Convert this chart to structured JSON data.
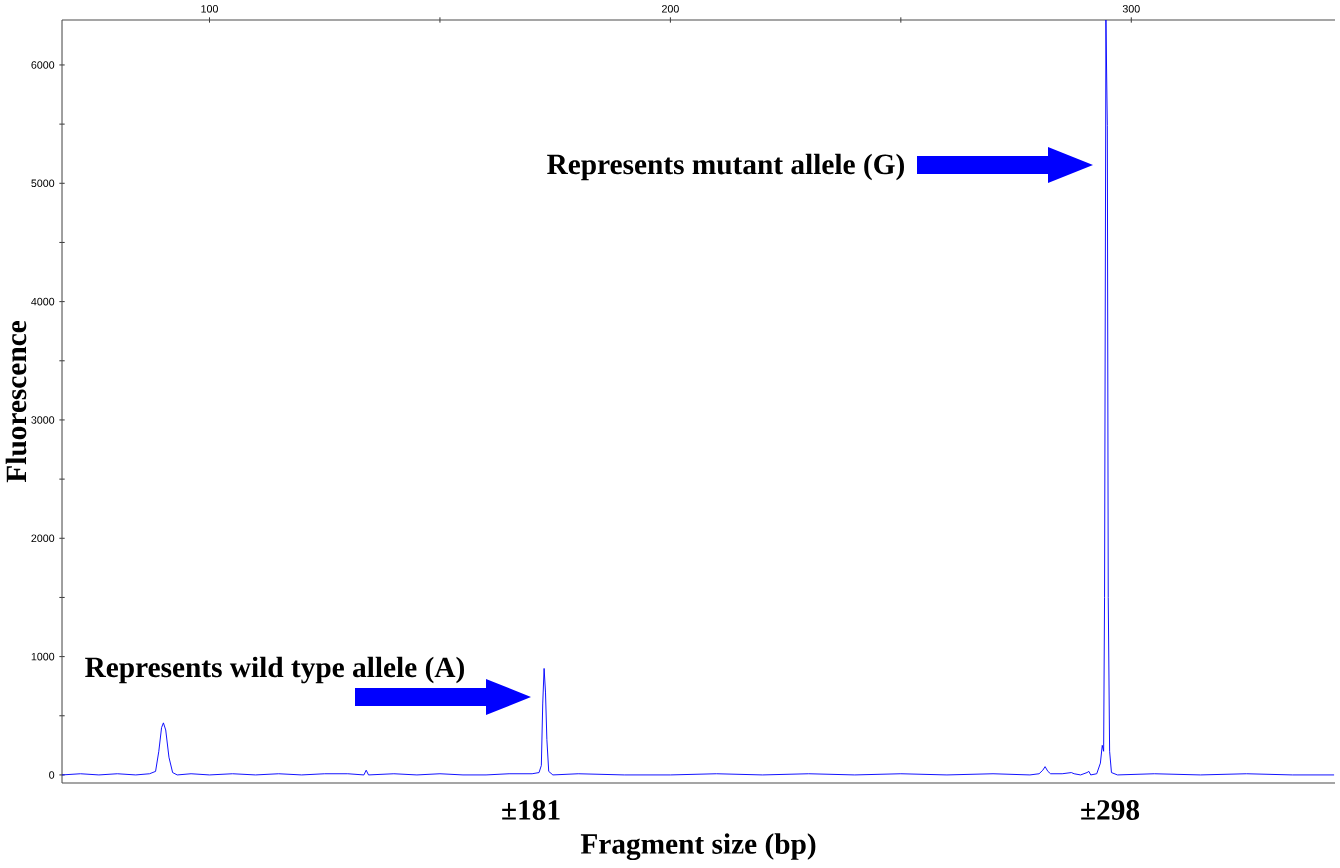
{
  "chart_data": {
    "type": "line",
    "xlabel": "Fragment size (bp)",
    "ylabel": "Fluorescence",
    "xlim": [
      68,
      344.2
    ],
    "ylim": [
      -68,
      6380
    ],
    "xticks": [
      100,
      {
        "value": 150,
        "label": null
      },
      200,
      {
        "value": 250,
        "label": null
      },
      300
    ],
    "yticks": [
      0,
      {
        "value": 500,
        "label": null
      },
      1000,
      {
        "value": 1500,
        "label": null
      },
      2000,
      {
        "value": 2500,
        "label": null
      },
      3000,
      {
        "value": 3500,
        "label": null
      },
      4000,
      {
        "value": 4500,
        "label": null
      },
      5000,
      {
        "value": 5500,
        "label": null
      },
      6000
    ],
    "tick_labels": "xy",
    "grid": false,
    "marker": "none",
    "line_style": "solid",
    "series": [
      {
        "color": "#0000ff",
        "x": [
          68,
          72,
          76,
          80,
          84,
          87,
          88.3,
          89,
          89.6,
          90,
          90.5,
          91.2,
          92,
          93,
          96,
          100,
          105,
          110,
          115,
          120,
          125,
          130,
          133.5,
          134,
          134.5,
          140,
          145,
          150,
          155,
          160,
          165,
          170,
          171.5,
          172,
          172.3,
          172.6,
          172.9,
          173.2,
          173.6,
          174.5,
          180,
          190,
          200,
          210,
          220,
          230,
          240,
          250,
          260,
          270,
          278,
          280,
          280.8,
          281.3,
          281.9,
          282.5,
          285,
          287,
          287.6,
          289,
          290.4,
          290.8,
          291.2,
          292.5,
          293.3,
          293.7,
          294.0,
          294.2,
          294.5,
          294.8,
          295.0,
          295.3,
          295.7,
          297,
          305,
          315,
          325,
          335,
          344
        ],
        "values": [
          0,
          10,
          0,
          10,
          0,
          10,
          30,
          200,
          400,
          440,
          380,
          150,
          20,
          0,
          10,
          0,
          10,
          0,
          10,
          0,
          10,
          10,
          0,
          40,
          0,
          10,
          0,
          10,
          0,
          0,
          10,
          10,
          20,
          80,
          600,
          900,
          700,
          300,
          30,
          0,
          10,
          0,
          0,
          10,
          0,
          10,
          0,
          10,
          0,
          10,
          0,
          10,
          40,
          70,
          30,
          10,
          10,
          20,
          10,
          0,
          20,
          30,
          0,
          10,
          100,
          250,
          200,
          1500,
          6380,
          5490,
          1500,
          200,
          20,
          0,
          10,
          0,
          10,
          0,
          0
        ]
      }
    ],
    "annotations": [
      "Represents wild type allele (A)",
      "Represents mutant allele (G)",
      "±181",
      "±298"
    ]
  }
}
